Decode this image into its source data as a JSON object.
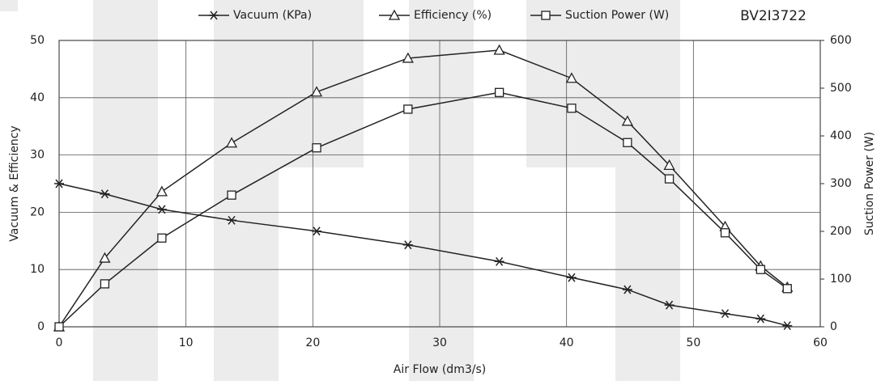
{
  "chart_data": {
    "type": "line",
    "annotation": "BV2I3722",
    "xlabel": "Air Flow (dm3/s)",
    "ylabel": "Vacuum  & Efficiency",
    "y2label": "Suction Power (W)",
    "x": [
      0,
      3.6,
      8.1,
      13.6,
      20.3,
      27.5,
      34.7,
      40.4,
      44.8,
      48.1,
      52.5,
      55.3,
      57.4
    ],
    "series": [
      {
        "name": "Vacuum (KPa)",
        "color": "#222222",
        "marker": "star",
        "axis": "y",
        "values": [
          25,
          23.2,
          20.5,
          18.6,
          16.7,
          14.3,
          11.4,
          8.6,
          6.5,
          3.8,
          2.3,
          1.4,
          0.2
        ]
      },
      {
        "name": "Efficiency (%)",
        "color": "#222222",
        "marker": "triangle",
        "axis": "y",
        "values": [
          0,
          12,
          23.6,
          32.1,
          41,
          46.9,
          48.3,
          43.4,
          35.9,
          28.2,
          17.5,
          10.6,
          6.9
        ]
      },
      {
        "name": "Suction Power (W)",
        "color": "#222222",
        "marker": "square",
        "axis": "y2",
        "values": [
          0,
          90,
          186,
          276,
          375,
          456,
          491,
          458,
          386,
          310,
          197,
          120,
          80
        ]
      }
    ],
    "xlim": [
      0,
      60
    ],
    "xticks": [
      0,
      10,
      20,
      30,
      40,
      50,
      60
    ],
    "ylim": [
      0,
      50
    ],
    "yticks": [
      0,
      10,
      20,
      30,
      40,
      50
    ],
    "y2lim": [
      0,
      600
    ],
    "y2ticks": [
      0,
      100,
      200,
      300,
      400,
      500,
      600
    ],
    "grid": true
  }
}
